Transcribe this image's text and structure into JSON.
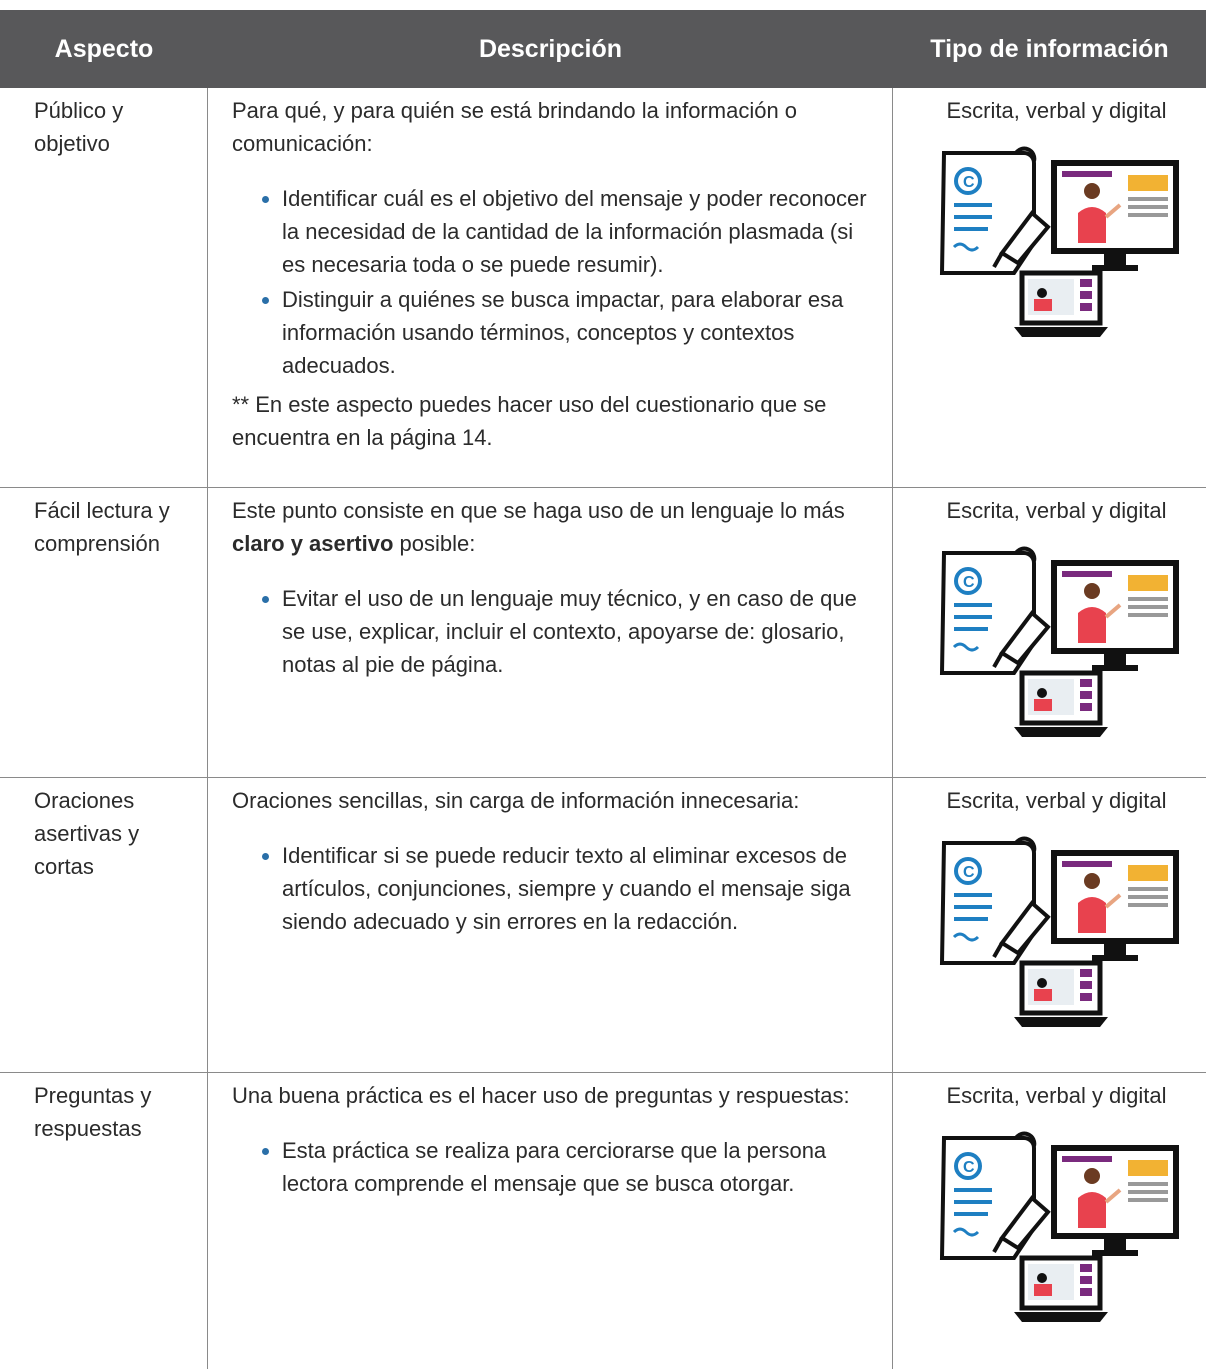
{
  "table": {
    "headers": [
      "Aspecto",
      "Descripción",
      "Tipo de información"
    ],
    "rows": [
      {
        "aspect": "Público y objetivo",
        "intro": [
          "Para qué, y para quién se está brindando la información o comunicación:"
        ],
        "bullets": [
          "Identificar cuál es el objetivo del mensaje y poder reconocer la necesidad de la cantidad de la información plasmada (si es necesaria toda o se puede resumir).",
          "Distinguir a quiénes se busca impactar, para elaborar esa información usando términos, conceptos y contextos adecuados."
        ],
        "note": "** En este aspecto puedes hacer uso del cuestionario que se encuentra en la página 14.",
        "type": "Escrita, verbal y digital"
      },
      {
        "aspect": "Fácil lectura y comprensión",
        "intro": [
          "Este punto consiste en que se haga uso de un lenguaje lo más ",
          "claro y asertivo",
          " posible:"
        ],
        "bullets": [
          "Evitar el uso de un lenguaje muy técnico, y en caso de que se use, explicar, incluir el contexto, apoyarse de: glosario, notas al pie de página."
        ],
        "type": "Escrita, verbal y digital"
      },
      {
        "aspect": "Oraciones asertivas y cortas",
        "intro": [
          "Oraciones sencillas, sin carga de información innecesaria:"
        ],
        "bullets": [
          "Identificar si se puede reducir texto al eliminar excesos de artículos, conjunciones, siempre y cuando el mensaje siga siendo adecuado y sin errores en la redacción."
        ],
        "type": "Escrita, verbal y digital"
      },
      {
        "aspect": "Preguntas y respuestas",
        "intro": [
          "Una buena práctica es el hacer uso de preguntas y respuestas:"
        ],
        "bullets": [
          "Esta práctica se realiza para cerciorarse que la persona lectora comprende el mensaje que se busca otorgar."
        ],
        "type": "Escrita, verbal y digital"
      }
    ]
  }
}
